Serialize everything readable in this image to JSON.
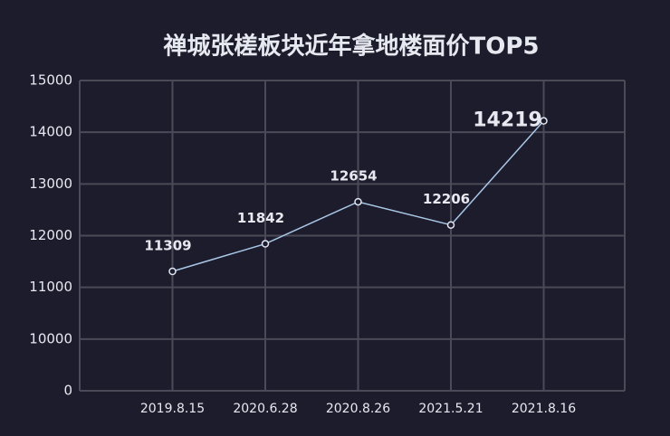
{
  "chart_data": {
    "type": "line",
    "title": "禅城张槎板块近年拿地楼面价TOP5",
    "categories": [
      "2019.8.15",
      "2020.6.28",
      "2020.8.26",
      "2021.5.21",
      "2021.8.16"
    ],
    "values": [
      11309,
      11842,
      12654,
      12206,
      14219
    ],
    "color": "#a9c7e6",
    "value_label_colors": [
      "#dfe6f2",
      "#dfe6f2",
      "#dfe6f2",
      "#dfe6f2",
      "#e53935"
    ],
    "ylim": [
      0,
      15000
    ],
    "yticks": [
      0,
      10000,
      11000,
      12000,
      13000,
      14000,
      15000
    ],
    "grid": true
  }
}
